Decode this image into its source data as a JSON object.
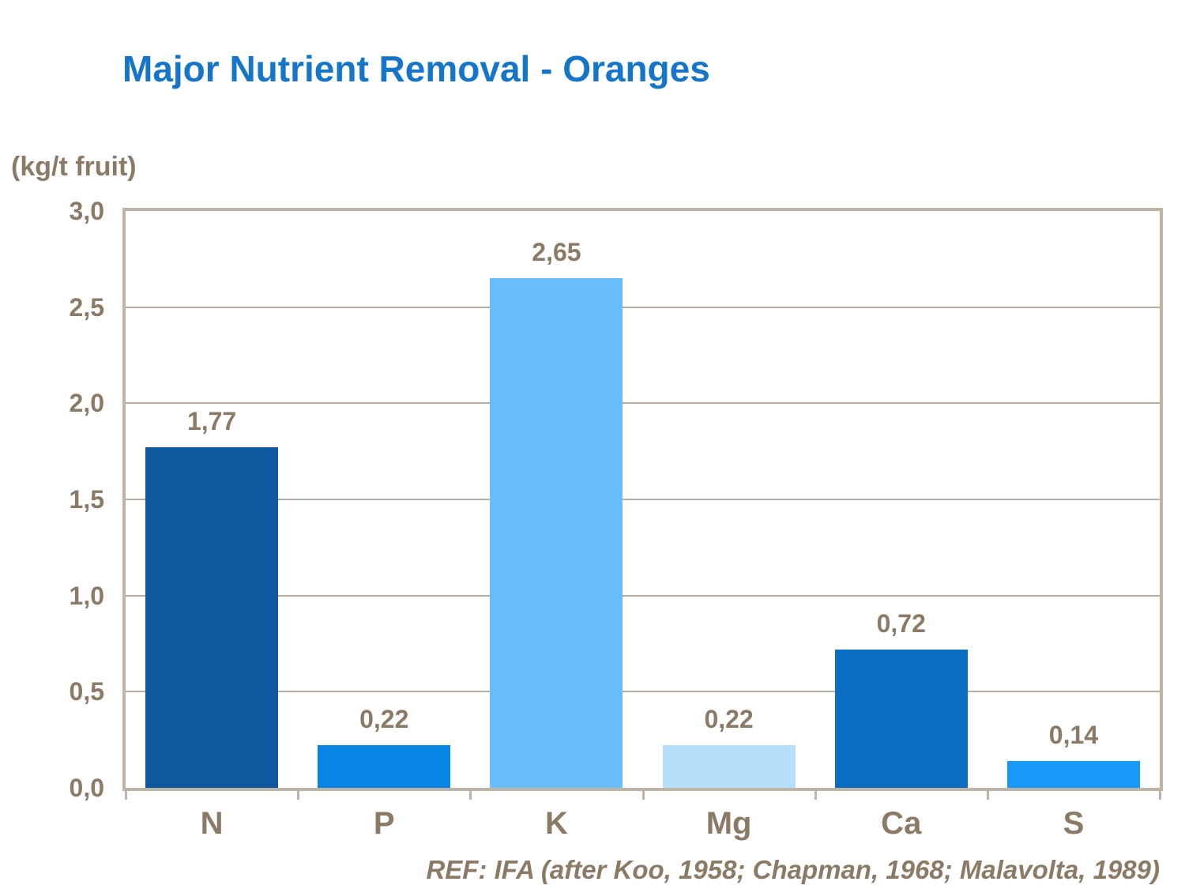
{
  "page": {
    "reference": "REF: IFA (after Koo, 1958; Chapman, 1968; Malavolta, 1989)"
  },
  "colors": {
    "title_blue": "#1575C9",
    "text_brown": "#8A7A66",
    "axis_border": "#BFB3A6",
    "gridline": "#B9AD9F",
    "background": "#FFFFFF"
  },
  "chart_data": {
    "type": "bar",
    "title": "Major Nutrient Removal - Oranges",
    "ylabel": "(kg/t fruit)",
    "xlabel": "",
    "categories": [
      "N",
      "P",
      "K",
      "Mg",
      "Ca",
      "S"
    ],
    "values": [
      1.77,
      0.22,
      2.65,
      0.22,
      0.72,
      0.14
    ],
    "value_labels": [
      "1,77",
      "0,22",
      "2,65",
      "0,22",
      "0,72",
      "0,14"
    ],
    "bar_colors": [
      "#0F579F",
      "#0884E4",
      "#68BCFA",
      "#B6DFFC",
      "#0B6DC2",
      "#1899FA"
    ],
    "ylim": [
      0,
      3
    ],
    "ytick_step": 0.5,
    "ytick_labels": [
      "0,0",
      "0,5",
      "1,0",
      "1,5",
      "2,0",
      "2,5",
      "3,0"
    ],
    "grid": true,
    "legend": false,
    "annotation": "REF: IFA (after Koo, 1958; Chapman, 1968; Malavolta, 1989)"
  }
}
